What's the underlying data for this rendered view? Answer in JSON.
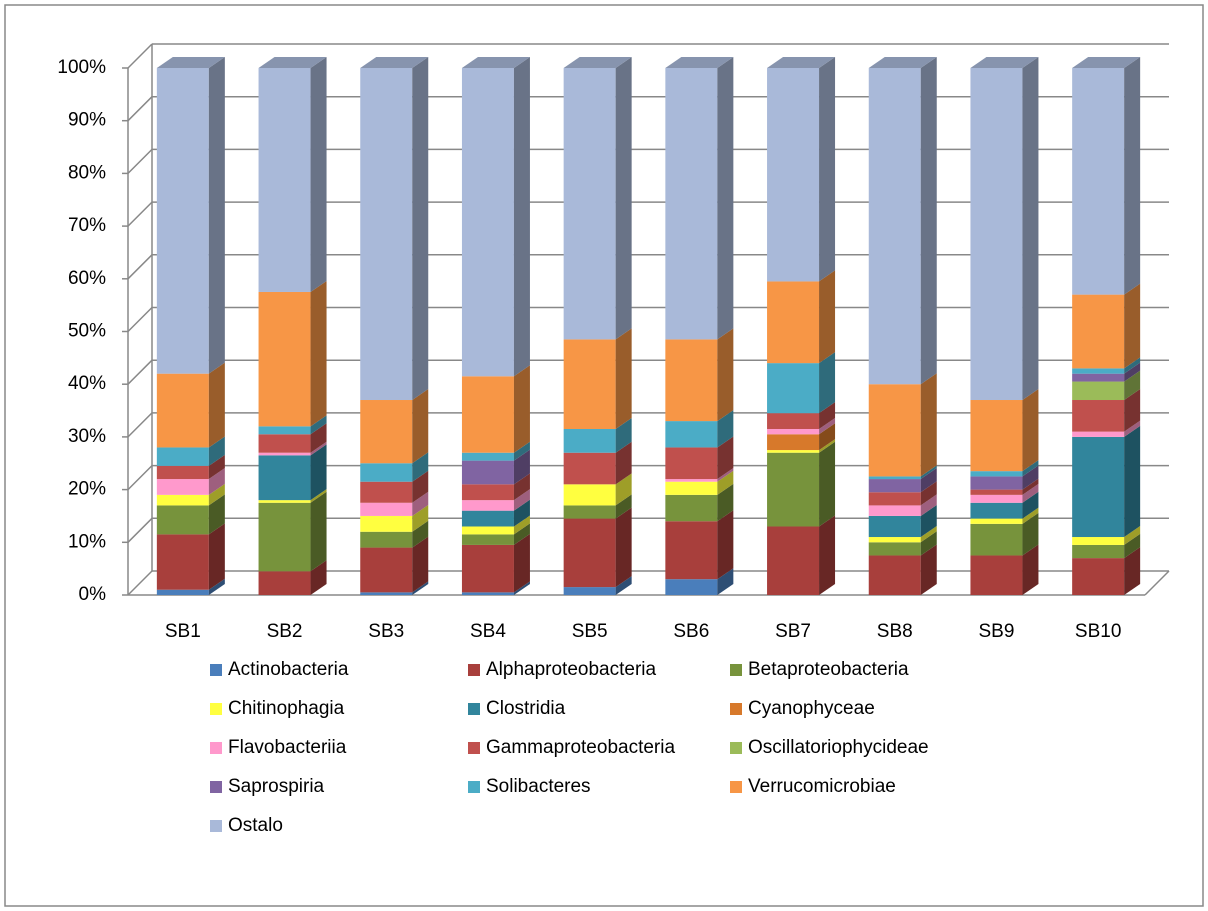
{
  "chart_data": {
    "type": "bar",
    "stacked": true,
    "grid": true,
    "legend": "bottom",
    "categories": [
      "SB1",
      "SB2",
      "SB3",
      "SB4",
      "SB5",
      "SB6",
      "SB7",
      "SB8",
      "SB9",
      "SB10"
    ],
    "ylim": [
      0,
      100
    ],
    "yticks": [
      {
        "value": 0,
        "label": "0%"
      },
      {
        "value": 10,
        "label": "10%"
      },
      {
        "value": 20,
        "label": "20%"
      },
      {
        "value": 30,
        "label": "30%"
      },
      {
        "value": 40,
        "label": "40%"
      },
      {
        "value": 50,
        "label": "50%"
      },
      {
        "value": 60,
        "label": "60%"
      },
      {
        "value": 70,
        "label": "70%"
      },
      {
        "value": 80,
        "label": "80%"
      },
      {
        "value": 90,
        "label": "90%"
      },
      {
        "value": 100,
        "label": "100%"
      }
    ],
    "series": [
      {
        "name": "Actinobacteria",
        "color": "#4a7ebb",
        "values": [
          1,
          0,
          0.5,
          0.5,
          1.5,
          3,
          0,
          0,
          0,
          0
        ]
      },
      {
        "name": "Alphaproteobacteria",
        "color": "#a83f3c",
        "values": [
          10.5,
          4.5,
          8.5,
          9,
          13,
          11,
          13,
          7.5,
          7.5,
          7
        ]
      },
      {
        "name": "Betaproteobacteria",
        "color": "#77933c",
        "values": [
          5.5,
          13,
          3,
          2,
          2.5,
          5,
          14,
          2.5,
          6,
          2.5
        ]
      },
      {
        "name": "Chitinophagia",
        "color": "#ffff40",
        "values": [
          2,
          0.5,
          3,
          1.5,
          4,
          2.5,
          0.5,
          1,
          1,
          1.5
        ]
      },
      {
        "name": "Clostridia",
        "color": "#31859c",
        "values": [
          0,
          8.5,
          0,
          3,
          0,
          0,
          0,
          4,
          3,
          19
        ]
      },
      {
        "name": "Cyanophyceae",
        "color": "#d7792b",
        "values": [
          0,
          0,
          0,
          0,
          0,
          0,
          3,
          0,
          0,
          0
        ]
      },
      {
        "name": "Flavobacteriia",
        "color": "#ff99cc",
        "values": [
          3,
          0.5,
          2.5,
          2,
          0,
          0.5,
          1,
          2,
          1.5,
          1
        ]
      },
      {
        "name": "Gammaproteobacteria",
        "color": "#c0504d",
        "values": [
          2.5,
          3.5,
          4,
          3,
          6,
          6,
          3,
          2.5,
          1,
          6
        ]
      },
      {
        "name": "Oscillatoriophycideae",
        "color": "#9bbb59",
        "values": [
          0,
          0,
          0,
          0,
          0,
          0,
          0,
          0,
          0,
          3.5
        ]
      },
      {
        "name": "Saprospiria",
        "color": "#8064a2",
        "values": [
          0,
          0,
          0,
          4.5,
          0,
          0,
          0,
          2.5,
          2.5,
          1.5
        ]
      },
      {
        "name": "Solibacteres",
        "color": "#4bacc6",
        "values": [
          3.5,
          1.5,
          3.5,
          1.5,
          4.5,
          5,
          9.5,
          0.5,
          1,
          1
        ]
      },
      {
        "name": "Verrucomicrobiae",
        "color": "#f79646",
        "values": [
          14,
          25.5,
          12,
          14.5,
          17,
          15.5,
          15.5,
          17.5,
          13.5,
          14
        ]
      },
      {
        "name": "Ostalo",
        "color": "#a9b9d9",
        "values": [
          58,
          42.5,
          63,
          58.5,
          51.5,
          51.5,
          40.5,
          60,
          63,
          43
        ]
      }
    ]
  }
}
